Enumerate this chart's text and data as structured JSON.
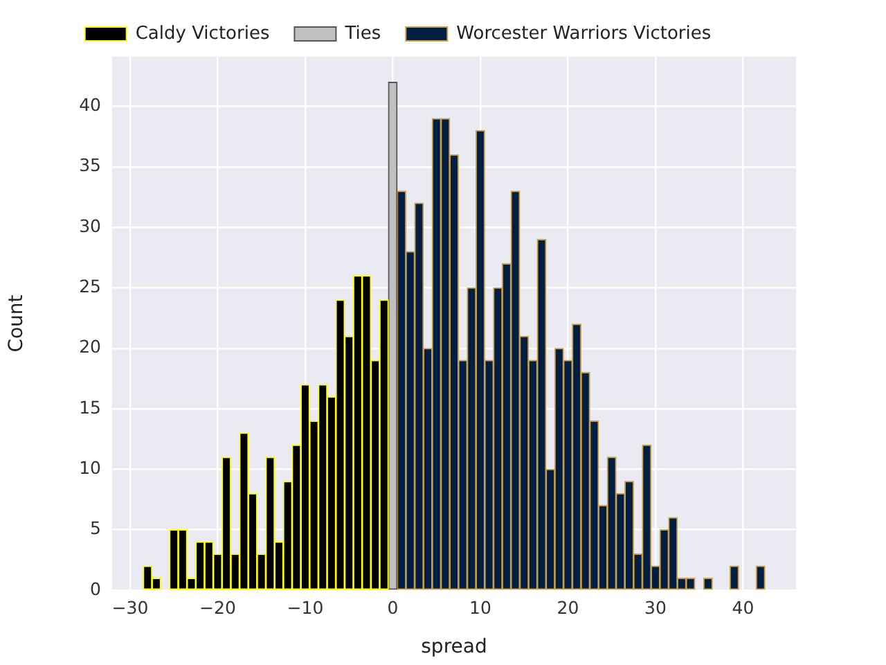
{
  "chart_data": {
    "type": "histogram",
    "xlabel": "spread",
    "ylabel": "Count",
    "xlim": [
      -32.05,
      46.05
    ],
    "ylim": [
      0,
      44.1
    ],
    "xticks": [
      -30,
      -20,
      -10,
      0,
      10,
      20,
      30,
      40
    ],
    "yticks": [
      0,
      5,
      10,
      15,
      20,
      25,
      30,
      35,
      40
    ],
    "grid": true,
    "legend": "top",
    "bins": [
      -28.5,
      -27.5,
      -26.5,
      -25.5,
      -24.5,
      -23.5,
      -22.5,
      -21.5,
      -20.5,
      -19.5,
      -18.5,
      -17.5,
      -16.5,
      -15.5,
      -14.5,
      -13.5,
      -12.5,
      -11.5,
      -10.5,
      -9.5,
      -8.5,
      -7.5,
      -6.5,
      -5.5,
      -4.5,
      -3.5,
      -2.5,
      -1.5,
      -0.5,
      0.5,
      1.5,
      2.5,
      3.5,
      4.5,
      5.5,
      6.5,
      7.5,
      8.5,
      9.5,
      10.5,
      11.5,
      12.5,
      13.5,
      14.5,
      15.5,
      16.5,
      17.5,
      18.5,
      19.5,
      20.5,
      21.5,
      22.5,
      23.5,
      24.5,
      25.5,
      26.5,
      27.5,
      28.5,
      29.5,
      30.5,
      31.5,
      32.5,
      33.5,
      34.5,
      35.5,
      36.5,
      37.5,
      38.5,
      39.5,
      40.5,
      41.5,
      42.5
    ],
    "series": [
      {
        "name": "Caldy Victories",
        "color": "#000000",
        "values": [
          2,
          1,
          0,
          5,
          5,
          1,
          4,
          4,
          3,
          11,
          3,
          13,
          8,
          3,
          11,
          4,
          9,
          12,
          17,
          14,
          17,
          16,
          24,
          21,
          26,
          26,
          19,
          24,
          null,
          null,
          null,
          null,
          null,
          null,
          null,
          null,
          null,
          null,
          null,
          null,
          null,
          null,
          null,
          null,
          null,
          null,
          null,
          null,
          null,
          null,
          null,
          null,
          null,
          null,
          null,
          null,
          null,
          null,
          null,
          null,
          null,
          null,
          null,
          null,
          null,
          null,
          null,
          null,
          null,
          null,
          null
        ]
      },
      {
        "name": "Ties",
        "color": "#c0c0c0",
        "values": [
          null,
          null,
          null,
          null,
          null,
          null,
          null,
          null,
          null,
          null,
          null,
          null,
          null,
          null,
          null,
          null,
          null,
          null,
          null,
          null,
          null,
          null,
          null,
          null,
          null,
          null,
          null,
          null,
          42,
          null,
          null,
          null,
          null,
          null,
          null,
          null,
          null,
          null,
          null,
          null,
          null,
          null,
          null,
          null,
          null,
          null,
          null,
          null,
          null,
          null,
          null,
          null,
          null,
          null,
          null,
          null,
          null,
          null,
          null,
          null,
          null,
          null,
          null,
          null,
          null,
          null,
          null,
          null,
          null,
          null,
          null
        ]
      },
      {
        "name": "Worcester Warriors Victories",
        "color": "#041e42",
        "values": [
          null,
          null,
          null,
          null,
          null,
          null,
          null,
          null,
          null,
          null,
          null,
          null,
          null,
          null,
          null,
          null,
          null,
          null,
          null,
          null,
          null,
          null,
          null,
          null,
          null,
          null,
          null,
          null,
          null,
          33,
          28,
          32,
          20,
          39,
          39,
          36,
          19,
          25,
          38,
          19,
          25,
          27,
          33,
          21,
          19,
          29,
          10,
          20,
          19,
          22,
          18,
          14,
          7,
          11,
          8,
          9,
          3,
          12,
          2,
          5,
          6,
          1,
          1,
          0,
          1,
          0,
          0,
          2,
          0,
          0,
          2
        ]
      }
    ]
  }
}
